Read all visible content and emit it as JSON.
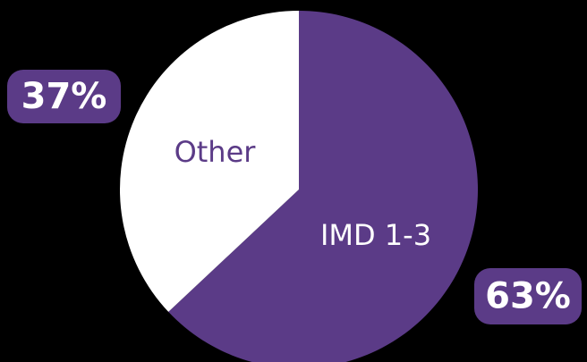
{
  "chart_data": {
    "type": "pie",
    "categories": [
      "IMD 1-3",
      "Other"
    ],
    "values": [
      63,
      37
    ],
    "value_labels": [
      "63%",
      "37%"
    ],
    "colors": [
      "#5b3b87",
      "#ffffff"
    ],
    "label_colors": [
      "#ffffff",
      "#5b3b87"
    ]
  }
}
